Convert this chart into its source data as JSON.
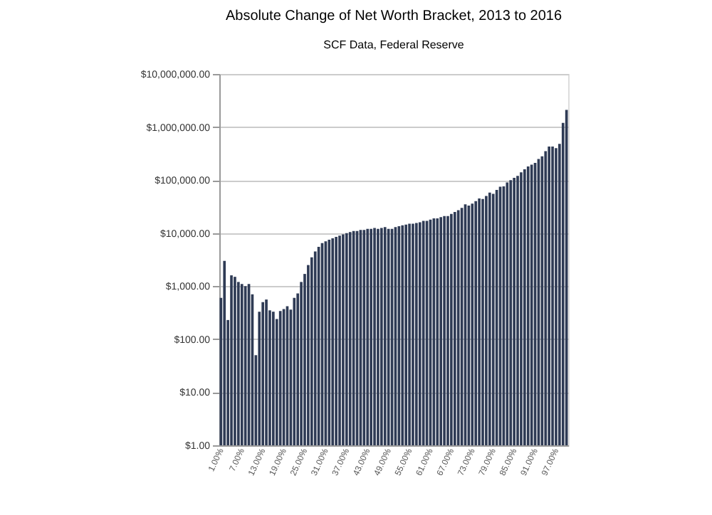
{
  "chart_data": {
    "type": "bar",
    "title": "Absolute Change of Net Worth Bracket, 2013 to 2016",
    "subtitle": "SCF Data, Federal Reserve",
    "categories": [
      "1.00%",
      null,
      null,
      null,
      null,
      null,
      "7.00%",
      null,
      null,
      null,
      null,
      null,
      "13.00%",
      null,
      null,
      null,
      null,
      null,
      "19.00%",
      null,
      null,
      null,
      null,
      null,
      "25.00%",
      null,
      null,
      null,
      null,
      null,
      "31.00%",
      null,
      null,
      null,
      null,
      null,
      "37.00%",
      null,
      null,
      null,
      null,
      null,
      "43.00%",
      null,
      null,
      null,
      null,
      null,
      "49.00%",
      null,
      null,
      null,
      null,
      null,
      "55.00%",
      null,
      null,
      null,
      null,
      null,
      "61.00%",
      null,
      null,
      null,
      null,
      null,
      "67.00%",
      null,
      null,
      null,
      null,
      null,
      "73.00%",
      null,
      null,
      null,
      null,
      null,
      "79.00%",
      null,
      null,
      null,
      null,
      null,
      "85.00%",
      null,
      null,
      null,
      null,
      null,
      "91.00%",
      null,
      null,
      null,
      null,
      null,
      "97.00%",
      null,
      null,
      null
    ],
    "values": [
      600,
      3000,
      230,
      1600,
      1500,
      1200,
      1100,
      1000,
      1100,
      700,
      50,
      330,
      500,
      560,
      350,
      330,
      240,
      340,
      370,
      420,
      360,
      600,
      730,
      1200,
      1700,
      2500,
      3500,
      4500,
      5500,
      6500,
      7000,
      7500,
      8000,
      8500,
      9000,
      9500,
      10000,
      10500,
      11000,
      11000,
      11500,
      11500,
      12000,
      12000,
      12500,
      12000,
      12500,
      13000,
      12000,
      12000,
      13000,
      13500,
      14000,
      14500,
      15000,
      15000,
      15500,
      16000,
      17000,
      17000,
      18000,
      19000,
      19000,
      20000,
      21000,
      21000,
      23000,
      25000,
      27000,
      30000,
      35000,
      33000,
      36000,
      40000,
      45000,
      44000,
      50000,
      58000,
      55000,
      65000,
      75000,
      76000,
      90000,
      100000,
      110000,
      120000,
      140000,
      160000,
      180000,
      195000,
      210000,
      250000,
      280000,
      350000,
      430000,
      430000,
      400000,
      480000,
      1200000,
      2100000
    ],
    "color": "#2f3b55",
    "log": "y",
    "ylim": [
      1,
      10000000
    ],
    "yticks": [
      {
        "value": 1,
        "label": "$1.00"
      },
      {
        "value": 10,
        "label": "$10.00"
      },
      {
        "value": 100,
        "label": "$100.00"
      },
      {
        "value": 1000,
        "label": "$1,000.00"
      },
      {
        "value": 10000,
        "label": "$10,000.00"
      },
      {
        "value": 100000,
        "label": "$100,000.00"
      },
      {
        "value": 1000000,
        "label": "$1,000,000.00"
      },
      {
        "value": 10000000,
        "label": "$10,000,000.00"
      }
    ],
    "grid": "y"
  }
}
